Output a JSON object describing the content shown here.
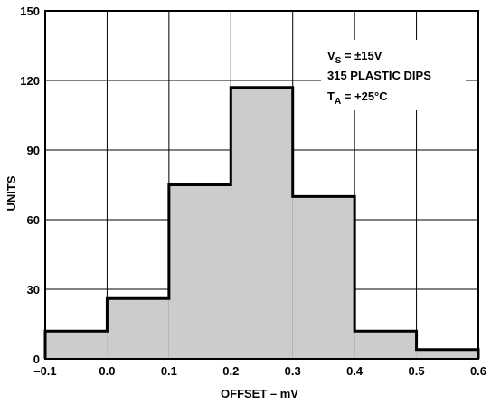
{
  "chart_data": {
    "type": "bar",
    "title": "",
    "xlabel": "OFFSET – mV",
    "ylabel": "UNITS",
    "xlim": [
      -0.1,
      0.6
    ],
    "ylim": [
      0,
      150
    ],
    "grid": true,
    "x_ticks": [
      "–0.1",
      "0.0",
      "0.1",
      "0.2",
      "0.3",
      "0.4",
      "0.5",
      "0.6"
    ],
    "y_ticks": [
      "0",
      "30",
      "60",
      "90",
      "120",
      "150"
    ],
    "bins": [
      {
        "from": -0.1,
        "to": 0.0,
        "value": 12
      },
      {
        "from": 0.0,
        "to": 0.1,
        "value": 26
      },
      {
        "from": 0.1,
        "to": 0.2,
        "value": 75
      },
      {
        "from": 0.2,
        "to": 0.3,
        "value": 117
      },
      {
        "from": 0.3,
        "to": 0.4,
        "value": 70
      },
      {
        "from": 0.4,
        "to": 0.5,
        "value": 12
      },
      {
        "from": 0.5,
        "to": 0.6,
        "value": 4
      }
    ],
    "annotations": {
      "line1_main": "V",
      "line1_sub": "S",
      "line1_rest": " = ±15V",
      "line2": "315 PLASTIC DIPS",
      "line3_main": "T",
      "line3_sub": "A",
      "line3_rest": " =  +25°C"
    },
    "colors": {
      "bar_fill": "#cccccc",
      "bar_stroke": "#000000",
      "grid": "#000000"
    }
  }
}
